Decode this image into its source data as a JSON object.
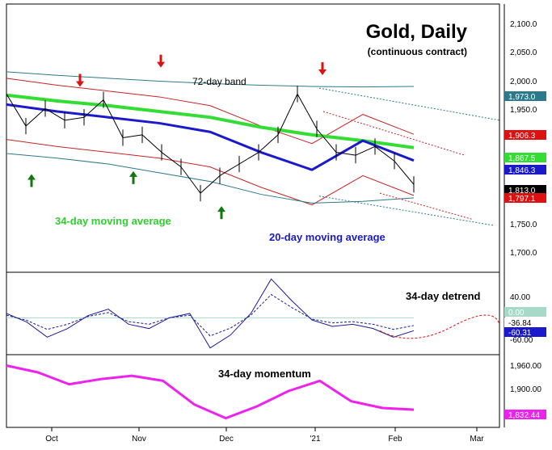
{
  "chart_data": {
    "type": "line",
    "title": "Gold, Daily",
    "subtitle": "(continuous contract)",
    "x_tick_labels": [
      "Oct",
      "Nov",
      "Dec",
      "'21",
      "Feb",
      "Mar"
    ],
    "panels": [
      {
        "name": "price",
        "y_ticks": [
          "2,100.0",
          "2,050.0",
          "2,000.0",
          "1,950.0",
          "1,750.0",
          "1,700.0"
        ],
        "ylim": [
          1660,
          2110
        ],
        "annotations": [
          "72-day band",
          "34-day moving average",
          "20-day moving average"
        ],
        "series": [
          {
            "name": "72-day band",
            "color": "#2a7a8c",
            "values": [
              1998,
              1992,
              1987,
              1982,
              1978,
              1975,
              1973,
              1972,
              1973
            ]
          },
          {
            "name": "72-day band",
            "color": "#2a7a8c",
            "values": [
              1858,
              1850,
              1840,
              1825,
              1810,
              1788,
              1773,
              1776,
              1782
            ]
          },
          {
            "name": "34-day moving average",
            "color": "#33dd33",
            "values": [
              1958,
              1948,
              1940,
              1930,
              1920,
              1903,
              1890,
              1880,
              1868
            ]
          },
          {
            "name": "20-day moving average",
            "color": "#1a1acc",
            "values": [
              1942,
              1930,
              1920,
              1910,
              1895,
              1860,
              1830,
              1880,
              1846
            ]
          },
          {
            "name": "price",
            "color": "#000000",
            "values": [
              1960,
              1905,
              1935,
              1915,
              1920,
              1950,
              1885,
              1890,
              1860,
              1835,
              1790,
              1820,
              1840,
              1860,
              1890,
              1960,
              1900,
              1860,
              1855,
              1870,
              1845,
              1805
            ]
          }
        ],
        "last_values": [
          {
            "text": "1,973.0",
            "bg": "#2a7a8c",
            "fg": "#ffffff"
          },
          {
            "text": "1,906.3",
            "bg": "#dd1111",
            "fg": "#ffffff"
          },
          {
            "text": "1,867.5",
            "bg": "#33dd33",
            "fg": "#ffffff"
          },
          {
            "text": "1,846.3",
            "bg": "#1a1acc",
            "fg": "#ffffff"
          },
          {
            "text": "1,813.0",
            "bg": "#000000",
            "fg": "#ffffff"
          },
          {
            "text": "1,797.1",
            "bg": "#dd1111",
            "fg": "#ffffff"
          }
        ]
      },
      {
        "name": "34-day detrend",
        "y_ticks": [
          "40.00",
          "-60.00"
        ],
        "zero_label": "0.00",
        "annotation": "34-day detrend",
        "values": [
          10,
          -10,
          -45,
          -25,
          5,
          20,
          -15,
          -25,
          0,
          10,
          -70,
          -40,
          10,
          90,
          40,
          -5,
          -20,
          -15,
          -25,
          -45,
          -30
        ],
        "last_values": [
          {
            "text": "0.00",
            "bg": "#a8d8c8",
            "fg": "#ffffff"
          },
          {
            "text": "-36.84",
            "bg": "#ffffff",
            "fg": "#000000"
          },
          {
            "text": "-60.31",
            "bg": "#1a1acc",
            "fg": "#ffffff"
          }
        ]
      },
      {
        "name": "34-day momentum",
        "y_ticks": [
          "1,960.00",
          "1,900.00"
        ],
        "annotation": "34-day momentum",
        "values": [
          1955,
          1935,
          1900,
          1915,
          1925,
          1910,
          1840,
          1800,
          1835,
          1880,
          1910,
          1850,
          1830,
          1825
        ],
        "last_value": {
          "text": "1,832.44",
          "bg": "#ee22ee",
          "fg": "#ffffff"
        }
      }
    ]
  }
}
